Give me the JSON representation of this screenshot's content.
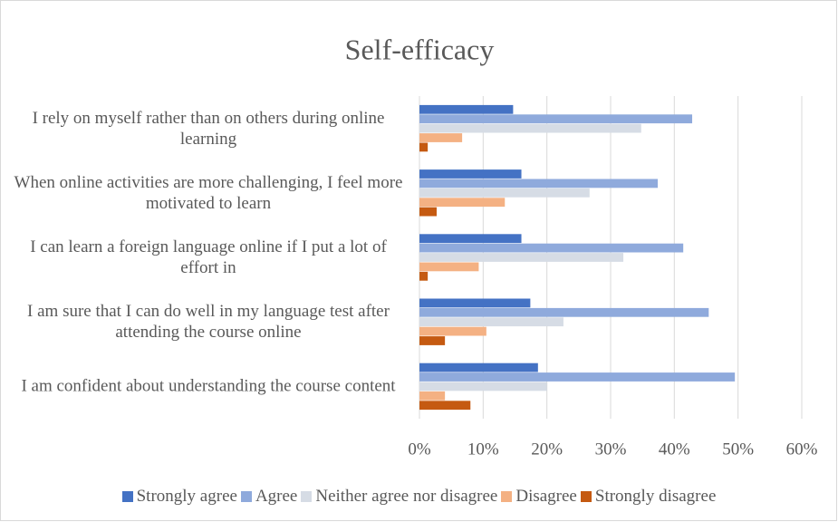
{
  "chart_data": {
    "type": "bar",
    "orientation": "horizontal",
    "title": "Self-efficacy",
    "categories": [
      "I rely on myself rather than on others during online learning",
      "When online activities are more challenging, I feel more motivated to learn",
      "I can learn a foreign language online if I put a lot of effort in",
      "I am sure that I can do well in my language test after attending the course online",
      "I am confident about understanding the course content"
    ],
    "series": [
      {
        "name": "Strongly agree",
        "color": "#4472c4",
        "values": [
          14.7,
          16.0,
          16.0,
          17.4,
          18.6
        ]
      },
      {
        "name": "Agree",
        "color": "#8faadc",
        "values": [
          42.8,
          37.4,
          41.4,
          45.4,
          49.5
        ]
      },
      {
        "name": "Neither agree nor disagree",
        "color": "#d6dce5",
        "values": [
          34.8,
          26.7,
          32.0,
          22.6,
          20.0
        ]
      },
      {
        "name": "Disagree",
        "color": "#f4b183",
        "values": [
          6.7,
          13.4,
          9.3,
          10.5,
          4.0
        ]
      },
      {
        "name": "Strongly disagree",
        "color": "#c55a11",
        "values": [
          1.3,
          2.7,
          1.3,
          4.0,
          8.0
        ]
      }
    ],
    "xlim": [
      0,
      60
    ],
    "xticks": [
      {
        "value": 0,
        "label": "0%"
      },
      {
        "value": 10,
        "label": "10%"
      },
      {
        "value": 20,
        "label": "20%"
      },
      {
        "value": 30,
        "label": "30%"
      },
      {
        "value": 40,
        "label": "40%"
      },
      {
        "value": 50,
        "label": "50%"
      },
      {
        "value": 60,
        "label": "60%"
      }
    ],
    "grid": true,
    "legend": "bottom"
  }
}
